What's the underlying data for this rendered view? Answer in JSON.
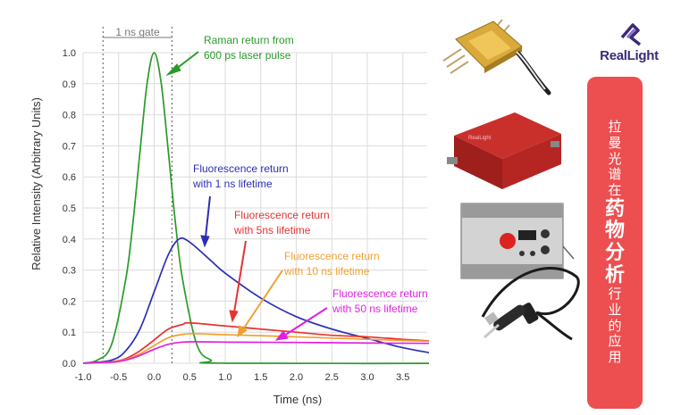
{
  "chart_data": {
    "type": "line",
    "xlabel": "Time (ns)",
    "ylabel": "Relative Intensity (Arbitrary Units)",
    "xlim": [
      -1.0,
      5.0
    ],
    "ylim": [
      0,
      1.0
    ],
    "xticks": [
      "-1.0",
      "-0.5",
      "0.0",
      "0.5",
      "1.0",
      "1.5",
      "2.0",
      "2.5",
      "3.0",
      "3.5",
      "4.0",
      "4.5",
      "5.0"
    ],
    "yticks": [
      "0.0",
      "0.1",
      "0.2",
      "0.3",
      "0.4",
      "0.5",
      "0.6",
      "0.7",
      "0.8",
      "0.9",
      "1.0"
    ],
    "gate": {
      "label": "1 ns gate",
      "x_start": -0.72,
      "x_end": 0.25
    },
    "series": [
      {
        "color": "#2a9a2a",
        "x": [
          -1.0,
          -0.8,
          -0.6,
          -0.4,
          -0.3,
          -0.2,
          -0.1,
          0.0,
          0.1,
          0.2,
          0.3,
          0.4,
          0.6,
          0.8,
          1.0,
          5.0
        ],
        "y": [
          0.0,
          0.01,
          0.06,
          0.27,
          0.45,
          0.68,
          0.9,
          1.0,
          0.9,
          0.68,
          0.45,
          0.27,
          0.06,
          0.01,
          0.0,
          0.0
        ]
      },
      {
        "color": "#2b2fb4",
        "x": [
          -1.0,
          -0.6,
          -0.4,
          -0.2,
          0.0,
          0.2,
          0.35,
          0.5,
          0.8,
          1.0,
          1.5,
          2.0,
          2.5,
          3.0,
          3.5,
          4.0,
          4.5,
          5.0
        ],
        "y": [
          0.0,
          0.01,
          0.04,
          0.11,
          0.23,
          0.35,
          0.4,
          0.39,
          0.33,
          0.29,
          0.21,
          0.15,
          0.11,
          0.08,
          0.05,
          0.03,
          0.02,
          0.01
        ]
      },
      {
        "color": "#e63232",
        "x": [
          -1.0,
          -0.6,
          -0.4,
          -0.2,
          0.0,
          0.2,
          0.4,
          0.5,
          1.0,
          1.5,
          2.0,
          2.5,
          3.0,
          3.5,
          4.0,
          4.5,
          5.0
        ],
        "y": [
          0.0,
          0.005,
          0.015,
          0.04,
          0.075,
          0.11,
          0.125,
          0.13,
          0.12,
          0.11,
          0.1,
          0.09,
          0.085,
          0.077,
          0.07,
          0.064,
          0.058
        ]
      },
      {
        "color": "#f0a030",
        "x": [
          -1.0,
          -0.6,
          -0.4,
          -0.2,
          0.0,
          0.2,
          0.4,
          0.6,
          1.0,
          2.0,
          3.0,
          4.0,
          5.0
        ],
        "y": [
          0.0,
          0.004,
          0.012,
          0.03,
          0.057,
          0.082,
          0.093,
          0.095,
          0.092,
          0.085,
          0.077,
          0.07,
          0.063
        ]
      },
      {
        "color": "#e020e0",
        "x": [
          -1.0,
          -0.6,
          -0.4,
          -0.2,
          0.0,
          0.2,
          0.4,
          0.6,
          1.0,
          2.0,
          3.0,
          4.0,
          5.0
        ],
        "y": [
          0.0,
          0.003,
          0.01,
          0.025,
          0.045,
          0.061,
          0.068,
          0.069,
          0.068,
          0.067,
          0.065,
          0.064,
          0.062
        ]
      }
    ],
    "annotations": [
      {
        "lines": [
          "Raman return from",
          "600 ps laser pulse"
        ],
        "color": "#2a9a2a"
      },
      {
        "lines": [
          "Fluorescence return",
          "with 1 ns lifetime"
        ],
        "color": "#2b2fb4"
      },
      {
        "lines": [
          "Fluorescence return",
          "with 5ns lifetime"
        ],
        "color": "#e63232"
      },
      {
        "lines": [
          "Fluorescence return",
          "with 10 ns lifetime"
        ],
        "color": "#f0a030"
      },
      {
        "lines": [
          "Fluorescence return",
          "with 50 ns lifetime"
        ],
        "color": "#e020e0"
      }
    ]
  },
  "brand": {
    "name": "RealLight",
    "color": "#3b2a7a"
  },
  "banner": {
    "color": "#ed4e50",
    "chars": [
      {
        "t": "拉",
        "big": false
      },
      {
        "t": "曼",
        "big": false
      },
      {
        "t": "光",
        "big": false
      },
      {
        "t": "谱",
        "big": false
      },
      {
        "t": "在",
        "big": false
      },
      {
        "t": "药",
        "big": true
      },
      {
        "t": "物",
        "big": true
      },
      {
        "t": "分",
        "big": true
      },
      {
        "t": "析",
        "big": true
      },
      {
        "t": "行",
        "big": false
      },
      {
        "t": "业",
        "big": false
      },
      {
        "t": "的",
        "big": false
      },
      {
        "t": "应",
        "big": false
      },
      {
        "t": "用",
        "big": false
      }
    ]
  },
  "products": [
    {
      "icon": "laser-module-icon"
    },
    {
      "icon": "red-enclosure-icon"
    },
    {
      "icon": "benchtop-driver-icon"
    },
    {
      "icon": "fiber-probe-icon"
    }
  ]
}
